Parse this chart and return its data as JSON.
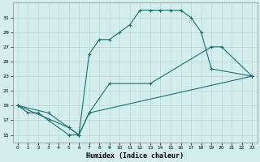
{
  "xlabel": "Humidex (Indice chaleur)",
  "bg_color": "#d4eeee",
  "line_color": "#1a7070",
  "grid_color": "#b8d8d8",
  "xlim": [
    -0.5,
    23.5
  ],
  "ylim": [
    14,
    33
  ],
  "yticks": [
    15,
    17,
    19,
    21,
    23,
    25,
    27,
    29,
    31
  ],
  "xticks": [
    0,
    1,
    2,
    3,
    4,
    5,
    6,
    7,
    8,
    9,
    10,
    11,
    12,
    13,
    14,
    15,
    16,
    17,
    18,
    19,
    20,
    21,
    22,
    23
  ],
  "line1_x": [
    0,
    1,
    2,
    3,
    5,
    6,
    7,
    8,
    9,
    10,
    11,
    12,
    13,
    14,
    15,
    16,
    17,
    18,
    19,
    23
  ],
  "line1_y": [
    19,
    18,
    18,
    17,
    15,
    15,
    26,
    28,
    28,
    29,
    30,
    32,
    32,
    32,
    32,
    32,
    31,
    29,
    24,
    23
  ],
  "line2_x": [
    0,
    3,
    5,
    6,
    7,
    9,
    13,
    19,
    20,
    23
  ],
  "line2_y": [
    19,
    18,
    16,
    15,
    18,
    22,
    22,
    27,
    27,
    23
  ],
  "line3_x": [
    0,
    5,
    6,
    7,
    23
  ],
  "line3_y": [
    19,
    16,
    15,
    18,
    23
  ]
}
